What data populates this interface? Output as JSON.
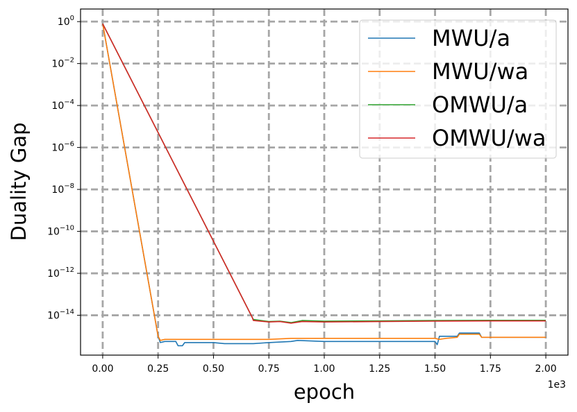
{
  "chart_data": {
    "type": "line",
    "xlabel": "epoch",
    "ylabel": "Duality Gap",
    "x_offset_label": "1e3",
    "xlim": [
      -0.1,
      2.1
    ],
    "ylim_log10": [
      -15.9,
      0.6
    ],
    "y_scale": "log",
    "grid": true,
    "grid_style": "dashed",
    "legend_position": "top-right",
    "x_ticks": [
      {
        "value": 0.0,
        "label": "0.00"
      },
      {
        "value": 0.25,
        "label": "0.25"
      },
      {
        "value": 0.5,
        "label": "0.50"
      },
      {
        "value": 0.75,
        "label": "0.75"
      },
      {
        "value": 1.0,
        "label": "1.00"
      },
      {
        "value": 1.25,
        "label": "1.25"
      },
      {
        "value": 1.5,
        "label": "1.50"
      },
      {
        "value": 1.75,
        "label": "1.75"
      },
      {
        "value": 2.0,
        "label": "2.00"
      }
    ],
    "y_ticks": [
      {
        "exp": 0,
        "base": "10",
        "sup": "0"
      },
      {
        "exp": -2,
        "base": "10",
        "sup": "−2"
      },
      {
        "exp": -4,
        "base": "10",
        "sup": "−4"
      },
      {
        "exp": -6,
        "base": "10",
        "sup": "−6"
      },
      {
        "exp": -8,
        "base": "10",
        "sup": "−8"
      },
      {
        "exp": -10,
        "base": "10",
        "sup": "−10"
      },
      {
        "exp": -12,
        "base": "10",
        "sup": "−12"
      },
      {
        "exp": -14,
        "base": "10",
        "sup": "−14"
      }
    ],
    "series": [
      {
        "name": "MWU/a",
        "color": "#1f77b4",
        "points": [
          [
            0.0,
            -0.1
          ],
          [
            0.25,
            -15.0
          ],
          [
            0.26,
            -15.3
          ],
          [
            0.28,
            -15.25
          ],
          [
            0.33,
            -15.25
          ],
          [
            0.34,
            -15.45
          ],
          [
            0.36,
            -15.45
          ],
          [
            0.37,
            -15.3
          ],
          [
            0.5,
            -15.3
          ],
          [
            0.55,
            -15.35
          ],
          [
            0.68,
            -15.35
          ],
          [
            0.75,
            -15.3
          ],
          [
            0.85,
            -15.25
          ],
          [
            0.88,
            -15.2
          ],
          [
            1.0,
            -15.25
          ],
          [
            1.25,
            -15.25
          ],
          [
            1.5,
            -15.25
          ],
          [
            1.51,
            -15.4
          ],
          [
            1.52,
            -15.0
          ],
          [
            1.6,
            -15.0
          ],
          [
            1.61,
            -14.85
          ],
          [
            1.7,
            -14.85
          ],
          [
            1.71,
            -15.05
          ],
          [
            1.8,
            -15.05
          ],
          [
            2.0,
            -15.05
          ]
        ]
      },
      {
        "name": "MWU/wa",
        "color": "#ff7f0e",
        "points": [
          [
            0.0,
            -0.1
          ],
          [
            0.25,
            -15.0
          ],
          [
            0.26,
            -15.2
          ],
          [
            0.28,
            -15.15
          ],
          [
            0.5,
            -15.15
          ],
          [
            0.6,
            -15.15
          ],
          [
            0.75,
            -15.15
          ],
          [
            0.85,
            -15.1
          ],
          [
            1.0,
            -15.1
          ],
          [
            1.25,
            -15.1
          ],
          [
            1.5,
            -15.1
          ],
          [
            1.52,
            -15.15
          ],
          [
            1.55,
            -15.1
          ],
          [
            1.6,
            -15.05
          ],
          [
            1.61,
            -14.9
          ],
          [
            1.7,
            -14.9
          ],
          [
            1.71,
            -15.05
          ],
          [
            1.8,
            -15.05
          ],
          [
            2.0,
            -15.05
          ]
        ]
      },
      {
        "name": "OMWU/a",
        "color": "#2ca02c",
        "points": [
          [
            0.0,
            -0.1
          ],
          [
            0.675,
            -14.1
          ],
          [
            0.68,
            -14.2
          ],
          [
            0.75,
            -14.3
          ],
          [
            0.8,
            -14.28
          ],
          [
            0.85,
            -14.35
          ],
          [
            0.9,
            -14.25
          ],
          [
            1.0,
            -14.28
          ],
          [
            1.25,
            -14.27
          ],
          [
            1.5,
            -14.25
          ],
          [
            1.75,
            -14.24
          ],
          [
            2.0,
            -14.24
          ]
        ]
      },
      {
        "name": "OMWU/wa",
        "color": "#d62728",
        "points": [
          [
            0.0,
            -0.1
          ],
          [
            0.675,
            -14.1
          ],
          [
            0.68,
            -14.25
          ],
          [
            0.75,
            -14.32
          ],
          [
            0.8,
            -14.3
          ],
          [
            0.85,
            -14.38
          ],
          [
            0.9,
            -14.3
          ],
          [
            1.0,
            -14.32
          ],
          [
            1.25,
            -14.3
          ],
          [
            1.5,
            -14.28
          ],
          [
            1.75,
            -14.27
          ],
          [
            2.0,
            -14.27
          ]
        ]
      }
    ]
  }
}
